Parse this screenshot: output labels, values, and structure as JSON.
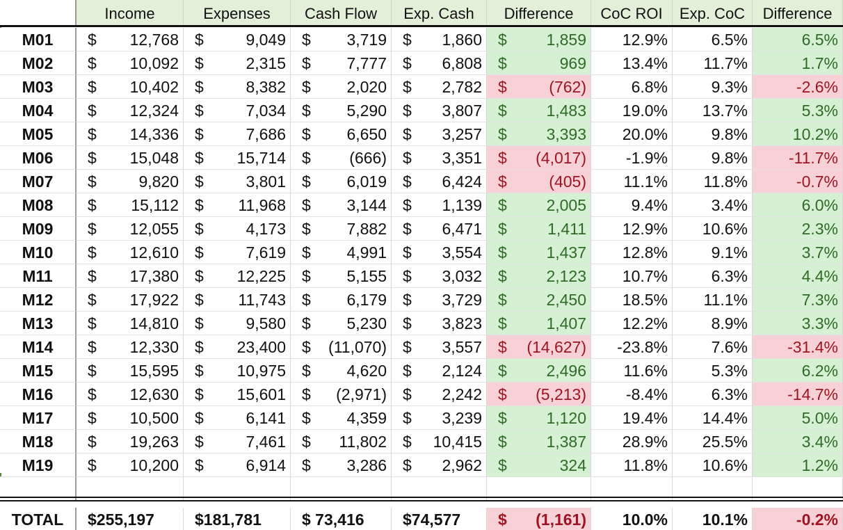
{
  "colors": {
    "header_bg": "#e2efd9",
    "positive_bg": "#d5f0d3",
    "positive_text": "#2f6b26",
    "negative_bg": "#f7d1d6",
    "negative_text": "#9c1622"
  },
  "headers": [
    "",
    "Income",
    "Expenses",
    "Cash Flow",
    "Exp. Cash",
    "Difference",
    "CoC ROI",
    "Exp. CoC",
    "Difference"
  ],
  "rows": [
    {
      "label": "M01",
      "income": "12,768",
      "expenses": "9,049",
      "cash_flow": "3,719",
      "exp_cash": "1,860",
      "difference": "1,859",
      "diff_status": "pos",
      "coc_roi": "12.9%",
      "exp_coc": "6.5%",
      "pct_difference": "6.5%",
      "pct_status": "pos"
    },
    {
      "label": "M02",
      "income": "10,092",
      "expenses": "2,315",
      "cash_flow": "7,777",
      "exp_cash": "6,808",
      "difference": "969",
      "diff_status": "pos",
      "coc_roi": "13.4%",
      "exp_coc": "11.7%",
      "pct_difference": "1.7%",
      "pct_status": "pos"
    },
    {
      "label": "M03",
      "income": "10,402",
      "expenses": "8,382",
      "cash_flow": "2,020",
      "exp_cash": "2,782",
      "difference": "(762)",
      "diff_status": "neg",
      "coc_roi": "6.8%",
      "exp_coc": "9.3%",
      "pct_difference": "-2.6%",
      "pct_status": "neg"
    },
    {
      "label": "M04",
      "income": "12,324",
      "expenses": "7,034",
      "cash_flow": "5,290",
      "exp_cash": "3,807",
      "difference": "1,483",
      "diff_status": "pos",
      "coc_roi": "19.0%",
      "exp_coc": "13.7%",
      "pct_difference": "5.3%",
      "pct_status": "pos"
    },
    {
      "label": "M05",
      "income": "14,336",
      "expenses": "7,686",
      "cash_flow": "6,650",
      "exp_cash": "3,257",
      "difference": "3,393",
      "diff_status": "pos",
      "coc_roi": "20.0%",
      "exp_coc": "9.8%",
      "pct_difference": "10.2%",
      "pct_status": "pos"
    },
    {
      "label": "M06",
      "income": "15,048",
      "expenses": "15,714",
      "cash_flow": "(666)",
      "exp_cash": "3,351",
      "difference": "(4,017)",
      "diff_status": "neg",
      "coc_roi": "-1.9%",
      "exp_coc": "9.8%",
      "pct_difference": "-11.7%",
      "pct_status": "neg"
    },
    {
      "label": "M07",
      "income": "9,820",
      "expenses": "3,801",
      "cash_flow": "6,019",
      "exp_cash": "6,424",
      "difference": "(405)",
      "diff_status": "neg",
      "coc_roi": "11.1%",
      "exp_coc": "11.8%",
      "pct_difference": "-0.7%",
      "pct_status": "neg"
    },
    {
      "label": "M08",
      "income": "15,112",
      "expenses": "11,968",
      "cash_flow": "3,144",
      "exp_cash": "1,139",
      "difference": "2,005",
      "diff_status": "pos",
      "coc_roi": "9.4%",
      "exp_coc": "3.4%",
      "pct_difference": "6.0%",
      "pct_status": "pos"
    },
    {
      "label": "M09",
      "income": "12,055",
      "expenses": "4,173",
      "cash_flow": "7,882",
      "exp_cash": "6,471",
      "difference": "1,411",
      "diff_status": "pos",
      "coc_roi": "12.9%",
      "exp_coc": "10.6%",
      "pct_difference": "2.3%",
      "pct_status": "pos"
    },
    {
      "label": "M10",
      "income": "12,610",
      "expenses": "7,619",
      "cash_flow": "4,991",
      "exp_cash": "3,554",
      "difference": "1,437",
      "diff_status": "pos",
      "coc_roi": "12.8%",
      "exp_coc": "9.1%",
      "pct_difference": "3.7%",
      "pct_status": "pos"
    },
    {
      "label": "M11",
      "income": "17,380",
      "expenses": "12,225",
      "cash_flow": "5,155",
      "exp_cash": "3,032",
      "difference": "2,123",
      "diff_status": "pos",
      "coc_roi": "10.7%",
      "exp_coc": "6.3%",
      "pct_difference": "4.4%",
      "pct_status": "pos"
    },
    {
      "label": "M12",
      "income": "17,922",
      "expenses": "11,743",
      "cash_flow": "6,179",
      "exp_cash": "3,729",
      "difference": "2,450",
      "diff_status": "pos",
      "coc_roi": "18.5%",
      "exp_coc": "11.1%",
      "pct_difference": "7.3%",
      "pct_status": "pos"
    },
    {
      "label": "M13",
      "income": "14,810",
      "expenses": "9,580",
      "cash_flow": "5,230",
      "exp_cash": "3,823",
      "difference": "1,407",
      "diff_status": "pos",
      "coc_roi": "12.2%",
      "exp_coc": "8.9%",
      "pct_difference": "3.3%",
      "pct_status": "pos"
    },
    {
      "label": "M14",
      "income": "12,330",
      "expenses": "23,400",
      "cash_flow": "(11,070)",
      "exp_cash": "3,557",
      "difference": "(14,627)",
      "diff_status": "neg",
      "coc_roi": "-23.8%",
      "exp_coc": "7.6%",
      "pct_difference": "-31.4%",
      "pct_status": "neg"
    },
    {
      "label": "M15",
      "income": "15,595",
      "expenses": "10,975",
      "cash_flow": "4,620",
      "exp_cash": "2,124",
      "difference": "2,496",
      "diff_status": "pos",
      "coc_roi": "11.6%",
      "exp_coc": "5.3%",
      "pct_difference": "6.2%",
      "pct_status": "pos"
    },
    {
      "label": "M16",
      "income": "12,630",
      "expenses": "15,601",
      "cash_flow": "(2,971)",
      "exp_cash": "2,242",
      "difference": "(5,213)",
      "diff_status": "neg",
      "coc_roi": "-8.4%",
      "exp_coc": "6.3%",
      "pct_difference": "-14.7%",
      "pct_status": "neg"
    },
    {
      "label": "M17",
      "income": "10,500",
      "expenses": "6,141",
      "cash_flow": "4,359",
      "exp_cash": "3,239",
      "difference": "1,120",
      "diff_status": "pos",
      "coc_roi": "19.4%",
      "exp_coc": "14.4%",
      "pct_difference": "5.0%",
      "pct_status": "pos"
    },
    {
      "label": "M18",
      "income": "19,263",
      "expenses": "7,461",
      "cash_flow": "11,802",
      "exp_cash": "10,415",
      "difference": "1,387",
      "diff_status": "pos",
      "coc_roi": "28.9%",
      "exp_coc": "25.5%",
      "pct_difference": "3.4%",
      "pct_status": "pos"
    },
    {
      "label": "M19",
      "income": "10,200",
      "expenses": "6,914",
      "cash_flow": "3,286",
      "exp_cash": "2,962",
      "difference": "324",
      "diff_status": "pos",
      "coc_roi": "11.8%",
      "exp_coc": "10.6%",
      "pct_difference": "1.2%",
      "pct_status": "pos"
    }
  ],
  "total": {
    "label": "TOTAL",
    "income": "$255,197",
    "expenses": "$181,781",
    "cash_flow": "$ 73,416",
    "exp_cash": "$74,577",
    "difference": "(1,161)",
    "diff_status": "neg",
    "coc_roi": "10.0%",
    "exp_coc": "10.1%",
    "pct_difference": "-0.2%",
    "pct_status": "neg"
  },
  "currency_symbol": "$"
}
